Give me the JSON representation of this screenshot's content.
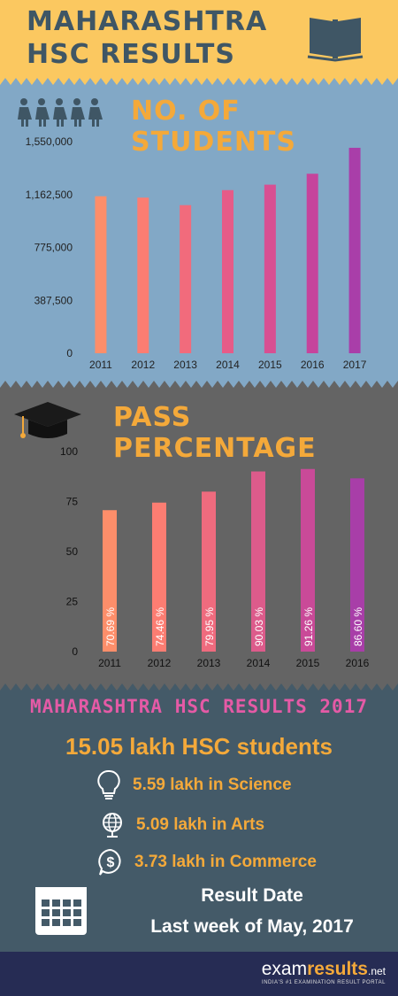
{
  "header": {
    "title_line1": "MAHARASHTRA",
    "title_line2": "HSC RESULTS",
    "book_icon": "open-book-icon"
  },
  "students_section": {
    "title": "NO. OF STUDENTS",
    "icon": "people-icon"
  },
  "pass_section": {
    "title": "PASS PERCENTAGE",
    "icon": "graduation-cap-icon"
  },
  "chart_data": [
    {
      "type": "bar",
      "title": "NO. OF STUDENTS",
      "categories": [
        "2011",
        "2012",
        "2013",
        "2014",
        "2015",
        "2016",
        "2017"
      ],
      "values": [
        1150000,
        1140000,
        1085000,
        1195000,
        1235000,
        1315000,
        1505000
      ],
      "ylim": [
        0,
        1550000
      ],
      "yticks": [
        "0",
        "387,500",
        "775,000",
        "1,162,500",
        "1,550,000"
      ],
      "ytick_values": [
        0,
        387500,
        775000,
        1162500,
        1550000
      ],
      "colors": [
        "#fd8e6a",
        "#fc7d72",
        "#f16b7c",
        "#e65b88",
        "#d84f92",
        "#c6449c",
        "#a93ea9"
      ],
      "grid": false
    },
    {
      "type": "bar",
      "title": "PASS PERCENTAGE",
      "categories": [
        "2011",
        "2012",
        "2013",
        "2014",
        "2015",
        "2016"
      ],
      "values": [
        70.69,
        74.46,
        79.95,
        90.03,
        91.26,
        86.6
      ],
      "data_labels": [
        "70.69 %",
        "74.46 %",
        "79.95 %",
        "90.03 %",
        "91.26 %",
        "86.60 %"
      ],
      "ylim": [
        0,
        100
      ],
      "yticks": [
        "0",
        "25",
        "50",
        "75",
        "100"
      ],
      "ytick_values": [
        0,
        25,
        50,
        75,
        100
      ],
      "colors": [
        "#fd8e6a",
        "#fc7d72",
        "#ef6b7e",
        "#dd5b8b",
        "#c94a98",
        "#a83ea8"
      ],
      "grid": false
    }
  ],
  "summary": {
    "title": "MAHARASHTRA HSC RESULTS 2017",
    "total": "15.05 lakh HSC students",
    "streams": [
      {
        "icon": "lightbulb-icon",
        "label": "5.59 lakh in Science"
      },
      {
        "icon": "globe-icon",
        "label": "5.09 lakh in Arts"
      },
      {
        "icon": "dollar-icon",
        "label": "3.73 lakh in Commerce"
      }
    ],
    "calendar_icon": "calendar-icon",
    "result_label": "Result Date",
    "result_value": "Last week of May, 2017"
  },
  "footer": {
    "logo_part1": "exam",
    "logo_part2": "results",
    "logo_part3": ".net",
    "tagline": "INDIA'S #1 EXAMINATION RESULT PORTAL"
  }
}
